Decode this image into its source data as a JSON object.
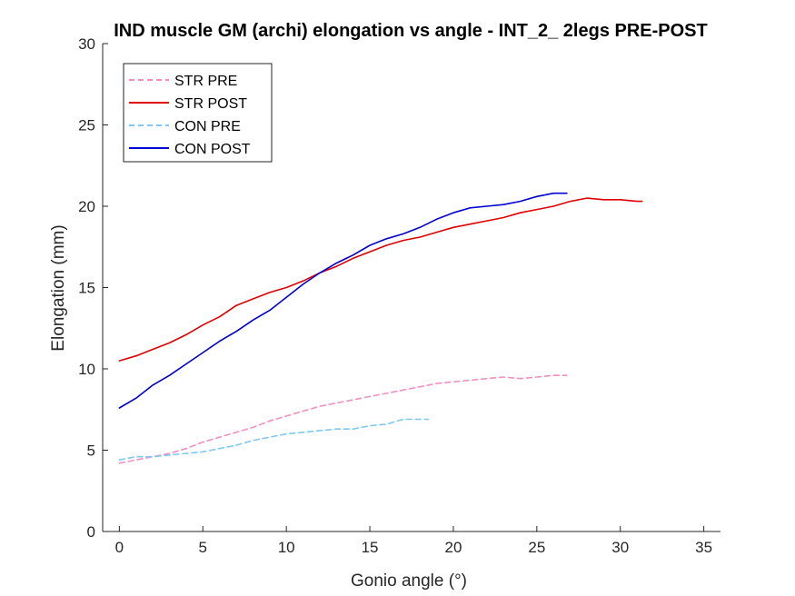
{
  "chart_data": {
    "type": "line",
    "title": "IND muscle GM (archi) elongation vs angle - INT_2_ 2legs PRE-POST",
    "xlabel": "Gonio angle (°)",
    "ylabel": "Elongation (mm)",
    "xlim": [
      -1,
      36
    ],
    "ylim": [
      0,
      30
    ],
    "xticks": [
      0,
      5,
      10,
      15,
      20,
      25,
      30,
      35
    ],
    "yticks": [
      0,
      5,
      10,
      15,
      20,
      25,
      30
    ],
    "grid": false,
    "legend_position": "top-left",
    "series": [
      {
        "name": "STR PRE",
        "color": "#f090c0",
        "style": "dashed",
        "x": [
          0,
          1,
          2,
          3,
          4,
          5,
          6,
          7,
          8,
          9,
          10,
          11,
          12,
          13,
          14,
          15,
          16,
          17,
          18,
          19,
          20,
          21,
          22,
          23,
          24,
          25,
          26,
          26.8
        ],
        "y": [
          4.2,
          4.4,
          4.6,
          4.8,
          5.1,
          5.5,
          5.8,
          6.1,
          6.4,
          6.8,
          7.1,
          7.4,
          7.7,
          7.9,
          8.1,
          8.3,
          8.5,
          8.7,
          8.9,
          9.1,
          9.2,
          9.3,
          9.4,
          9.5,
          9.4,
          9.5,
          9.6,
          9.6
        ]
      },
      {
        "name": "STR POST",
        "color": "#e00000",
        "style": "solid",
        "x": [
          0,
          1,
          2,
          3,
          4,
          5,
          6,
          7,
          8,
          9,
          10,
          11,
          12,
          13,
          14,
          15,
          16,
          17,
          18,
          19,
          20,
          21,
          22,
          23,
          24,
          25,
          26,
          27,
          28,
          29,
          30,
          31,
          31.3
        ],
        "y": [
          10.5,
          10.8,
          11.2,
          11.6,
          12.1,
          12.7,
          13.2,
          13.9,
          14.3,
          14.7,
          15.0,
          15.4,
          15.9,
          16.3,
          16.8,
          17.2,
          17.6,
          17.9,
          18.1,
          18.4,
          18.7,
          18.9,
          19.1,
          19.3,
          19.6,
          19.8,
          20.0,
          20.3,
          20.5,
          20.4,
          20.4,
          20.3,
          20.3
        ]
      },
      {
        "name": "CON PRE",
        "color": "#80c8f0",
        "style": "dashed",
        "x": [
          0,
          1,
          2,
          3,
          4,
          5,
          6,
          7,
          8,
          9,
          10,
          11,
          12,
          13,
          14,
          15,
          16,
          17,
          18,
          18.5
        ],
        "y": [
          4.4,
          4.6,
          4.6,
          4.7,
          4.8,
          4.9,
          5.1,
          5.3,
          5.6,
          5.8,
          6.0,
          6.1,
          6.2,
          6.3,
          6.3,
          6.5,
          6.6,
          6.9,
          6.9,
          6.9
        ]
      },
      {
        "name": "CON POST",
        "color": "#0000d0",
        "style": "solid",
        "x": [
          0,
          1,
          2,
          3,
          4,
          5,
          6,
          7,
          8,
          9,
          10,
          11,
          12,
          13,
          14,
          15,
          16,
          17,
          18,
          19,
          20,
          21,
          22,
          23,
          24,
          25,
          26,
          26.8
        ],
        "y": [
          7.6,
          8.2,
          9.0,
          9.6,
          10.3,
          11.0,
          11.7,
          12.3,
          13.0,
          13.6,
          14.4,
          15.2,
          15.9,
          16.5,
          17.0,
          17.6,
          18.0,
          18.3,
          18.7,
          19.2,
          19.6,
          19.9,
          20.0,
          20.1,
          20.3,
          20.6,
          20.8,
          20.8
        ]
      }
    ]
  }
}
